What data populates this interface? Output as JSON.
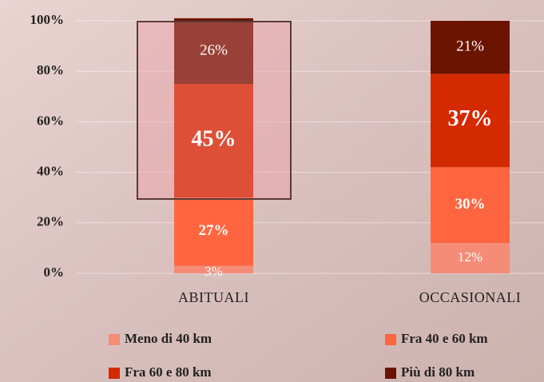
{
  "chart_data": {
    "type": "stacked_bar",
    "categories": [
      "ABITUALI",
      "OCCASIONALI"
    ],
    "series": [
      {
        "name": "Meno di 40 km",
        "color": "#f48c78",
        "values": [
          3,
          12
        ],
        "value_labels": [
          "3%",
          "12%"
        ]
      },
      {
        "name": "Fra 40 e 60 km",
        "color": "#ff6640",
        "values": [
          27,
          30
        ],
        "value_labels": [
          "27%",
          "30%"
        ]
      },
      {
        "name": "Fra 60 e 80 km",
        "color": "#d42a00",
        "values": [
          45,
          37
        ],
        "value_labels": [
          "45%",
          "37%"
        ]
      },
      {
        "name": "Più di 80 km",
        "color": "#6b1400",
        "values": [
          26,
          21
        ],
        "value_labels": [
          "26%",
          "21%"
        ]
      }
    ],
    "ylim": [
      0,
      100
    ],
    "yticks": [
      {
        "value": 0,
        "label": "0%"
      },
      {
        "value": 20,
        "label": "20%"
      },
      {
        "value": 40,
        "label": "40%"
      },
      {
        "value": 60,
        "label": "60%"
      },
      {
        "value": 80,
        "label": "80%"
      },
      {
        "value": 100,
        "label": "100%"
      }
    ],
    "grid": true
  }
}
